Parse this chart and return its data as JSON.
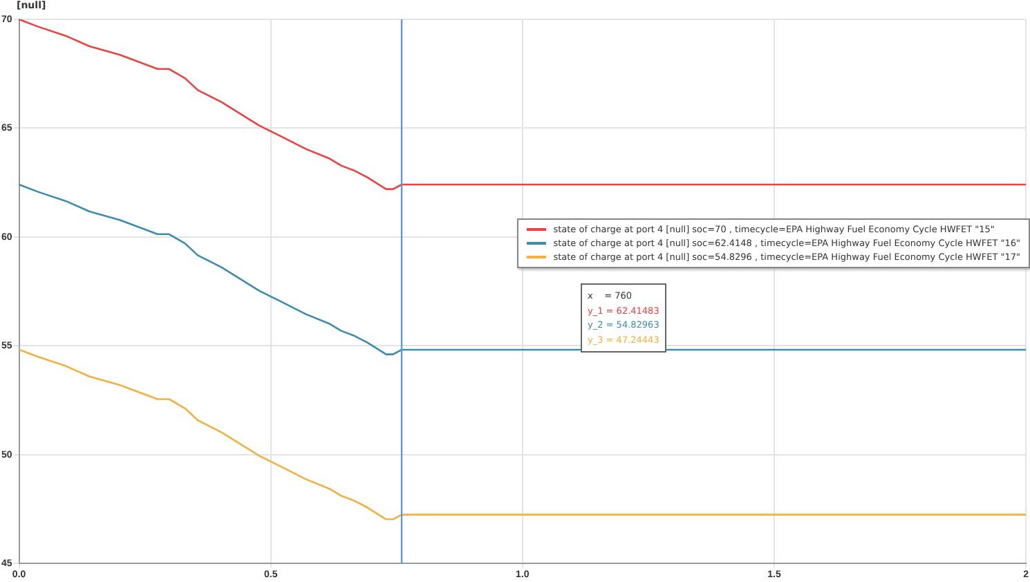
{
  "chart_data": {
    "type": "line",
    "ylabel": "[null]",
    "xlim": [
      0,
      2
    ],
    "xticks": [
      {
        "value": 0,
        "label": "0.0"
      },
      {
        "value": 0.5,
        "label": "0.5"
      },
      {
        "value": 1,
        "label": "1.0"
      },
      {
        "value": 1.5,
        "label": "1.5"
      },
      {
        "value": 2,
        "label": "2"
      }
    ],
    "ylim": [
      45,
      70
    ],
    "yticks": [
      45,
      50,
      55,
      60,
      65,
      70
    ],
    "x": [
      0,
      0.037,
      0.093,
      0.14,
      0.2,
      0.275,
      0.298,
      0.33,
      0.355,
      0.402,
      0.477,
      0.524,
      0.57,
      0.617,
      0.64,
      0.664,
      0.692,
      0.729,
      0.743,
      0.76,
      2
    ],
    "series": [
      {
        "name": "state of charge at port 4 [null] soc=70 , timecycle=EPA Highway Fuel Economy Cycle HWFET  \"15\"",
        "color": "#f04040",
        "values": [
          70,
          69.67,
          69.24,
          68.76,
          68.37,
          67.72,
          67.72,
          67.29,
          66.75,
          66.2,
          65.12,
          64.58,
          64.04,
          63.6,
          63.28,
          63.07,
          62.74,
          62.2,
          62.2,
          62.41,
          62.41
        ]
      },
      {
        "name": "state of charge at port 4 [null] soc=62.4148 , timecycle=EPA Highway Fuel Economy Cycle HWFET  \"16\"",
        "color": "#3a8db0",
        "values": [
          62.41,
          62.08,
          61.65,
          61.17,
          60.78,
          60.13,
          60.13,
          59.7,
          59.16,
          58.61,
          57.53,
          56.99,
          56.45,
          56.01,
          55.69,
          55.48,
          55.15,
          54.61,
          54.61,
          54.82,
          54.82
        ]
      },
      {
        "name": "state of charge at port 4 [null] soc=54.8296 , timecycle=EPA Highway Fuel Economy Cycle HWFET  \"17\"",
        "color": "#f5b040",
        "values": [
          54.83,
          54.5,
          54.07,
          53.59,
          53.2,
          52.55,
          52.55,
          52.12,
          51.58,
          51.03,
          49.95,
          49.41,
          48.87,
          48.43,
          48.11,
          47.9,
          47.57,
          47.03,
          47.03,
          47.24,
          47.24
        ]
      }
    ],
    "ref_lines": [
      {
        "axis": "x",
        "value": 0.76,
        "color": "#5b9bd5"
      }
    ],
    "annotations": [
      "x    = 760",
      "y_1 = 62.41483",
      "y_2 = 54.82963",
      "y_3 = 47.24443"
    ],
    "grid": true,
    "legend": "right",
    "marker": "none",
    "line_style": "solid"
  }
}
